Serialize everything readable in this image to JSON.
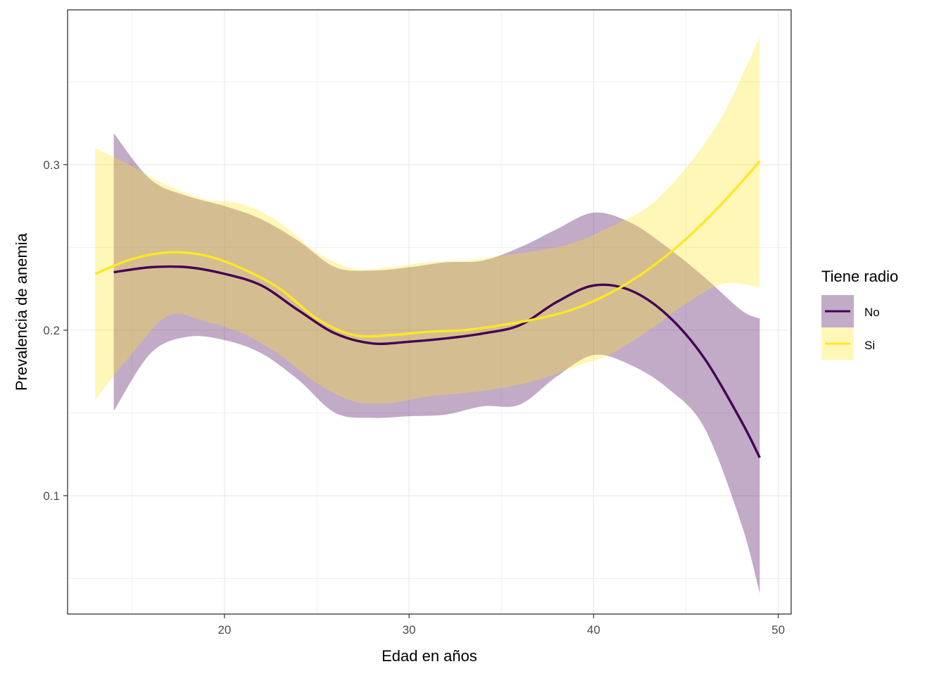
{
  "chart_data": {
    "type": "line",
    "title": "",
    "xlabel": "Edad en años",
    "ylabel": "Prevalencia de anemia",
    "xlim": [
      11.5,
      50.7
    ],
    "ylim": [
      0.0285,
      0.3935
    ],
    "x_ticks": [
      20,
      30,
      40,
      50
    ],
    "x_tick_labels": [
      "20",
      "30",
      "40",
      "50"
    ],
    "y_ticks": [
      0.1,
      0.2,
      0.3
    ],
    "y_tick_labels": [
      "0.1",
      "0.2",
      "0.3"
    ],
    "x_minor_ticks": [
      15,
      25,
      35,
      45
    ],
    "y_minor_ticks": [
      0.05,
      0.15,
      0.25,
      0.35
    ],
    "grid": true,
    "legend": {
      "title": "Tiene radio",
      "position": "right",
      "entries": [
        {
          "label": "No",
          "color": "#440154"
        },
        {
          "label": "Si",
          "color": "#FDE725"
        }
      ]
    },
    "series": [
      {
        "name": "No",
        "color": "#440154",
        "band_color": "#440154",
        "band_opacity": 0.33,
        "x": [
          14,
          16,
          18,
          20,
          22,
          24,
          26,
          28,
          30,
          32,
          34,
          36,
          38,
          40,
          42,
          44,
          46,
          48,
          49
        ],
        "y": [
          0.235,
          0.238,
          0.238,
          0.234,
          0.227,
          0.212,
          0.198,
          0.192,
          0.193,
          0.195,
          0.198,
          0.203,
          0.217,
          0.227,
          0.224,
          0.209,
          0.183,
          0.145,
          0.123
        ],
        "lower": [
          0.151,
          0.186,
          0.196,
          0.194,
          0.186,
          0.17,
          0.15,
          0.147,
          0.148,
          0.149,
          0.154,
          0.155,
          0.172,
          0.185,
          0.179,
          0.165,
          0.141,
          0.083,
          0.041
        ],
        "upper": [
          0.319,
          0.291,
          0.281,
          0.275,
          0.267,
          0.254,
          0.238,
          0.236,
          0.238,
          0.241,
          0.242,
          0.25,
          0.261,
          0.271,
          0.265,
          0.25,
          0.232,
          0.212,
          0.207
        ]
      },
      {
        "name": "Si",
        "color": "#FDE725",
        "band_color": "#FDE725",
        "band_opacity": 0.33,
        "x": [
          13,
          15,
          17,
          19,
          21,
          23,
          25,
          27,
          29,
          31,
          33,
          35,
          37,
          39,
          41,
          43,
          45,
          47,
          49
        ],
        "y": [
          0.234,
          0.243,
          0.247,
          0.245,
          0.237,
          0.225,
          0.207,
          0.197,
          0.197,
          0.199,
          0.2,
          0.203,
          0.207,
          0.213,
          0.223,
          0.237,
          0.255,
          0.277,
          0.302
        ],
        "lower": [
          0.158,
          0.186,
          0.209,
          0.205,
          0.198,
          0.185,
          0.168,
          0.157,
          0.156,
          0.16,
          0.162,
          0.165,
          0.17,
          0.178,
          0.186,
          0.2,
          0.216,
          0.228,
          0.226
        ],
        "upper": [
          0.31,
          0.299,
          0.287,
          0.279,
          0.276,
          0.265,
          0.247,
          0.237,
          0.238,
          0.241,
          0.242,
          0.245,
          0.248,
          0.253,
          0.263,
          0.275,
          0.298,
          0.33,
          0.377
        ]
      }
    ]
  }
}
